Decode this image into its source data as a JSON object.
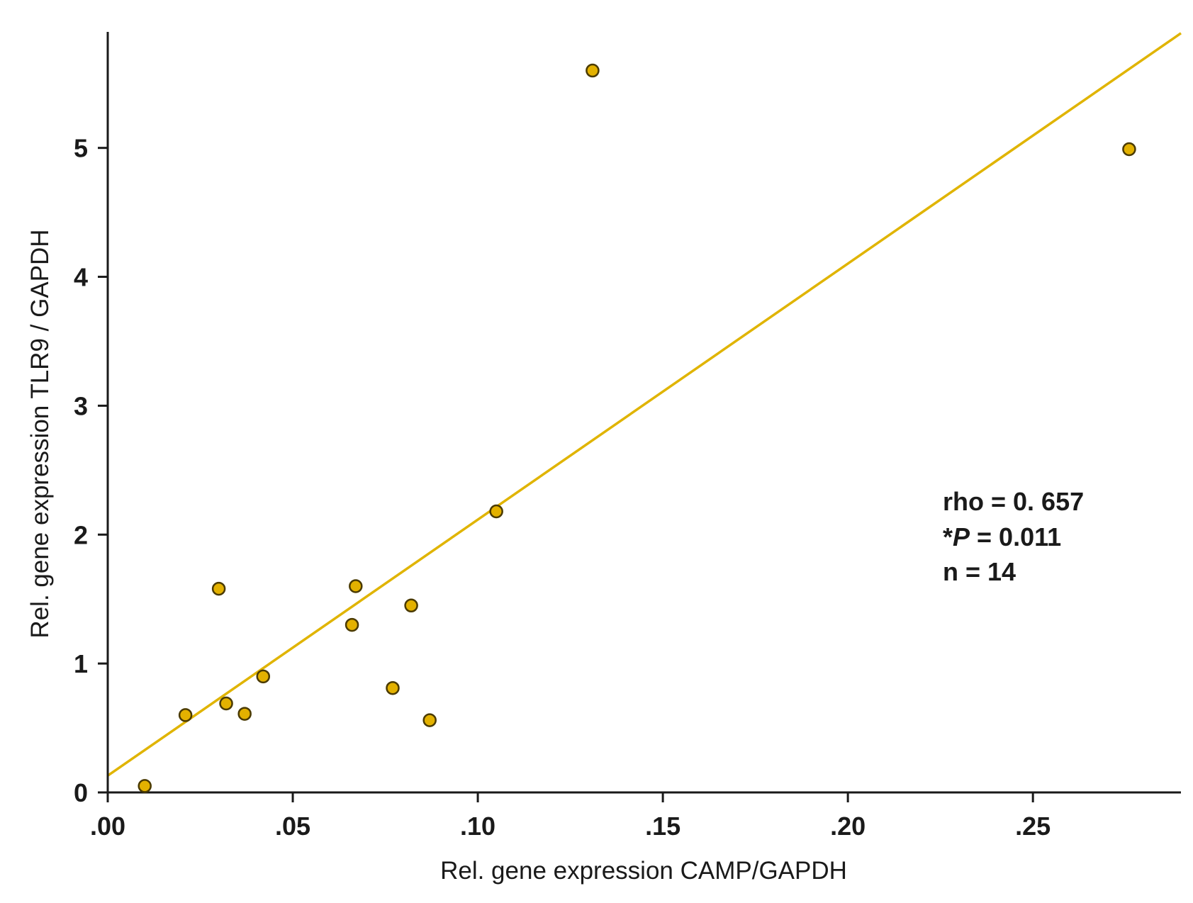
{
  "chart_data": {
    "type": "scatter",
    "xlabel": "Rel. gene expression CAMP/GAPDH",
    "ylabel": "Rel. gene expression TLR9 / GAPDH",
    "xlim": [
      0.0,
      0.29
    ],
    "ylim": [
      0.0,
      5.9
    ],
    "x_ticks": [
      0.0,
      0.05,
      0.1,
      0.15,
      0.2,
      0.25
    ],
    "x_tick_labels": [
      ".00",
      ".05",
      ".10",
      ".15",
      ".20",
      ".25"
    ],
    "y_ticks": [
      0,
      1,
      2,
      3,
      4,
      5
    ],
    "y_tick_labels": [
      "0",
      "1",
      "2",
      "3",
      "4",
      "5"
    ],
    "points": [
      {
        "x": 0.01,
        "y": 0.05
      },
      {
        "x": 0.021,
        "y": 0.6
      },
      {
        "x": 0.03,
        "y": 1.58
      },
      {
        "x": 0.032,
        "y": 0.69
      },
      {
        "x": 0.037,
        "y": 0.61
      },
      {
        "x": 0.042,
        "y": 0.9
      },
      {
        "x": 0.066,
        "y": 1.3
      },
      {
        "x": 0.067,
        "y": 1.6
      },
      {
        "x": 0.077,
        "y": 0.81
      },
      {
        "x": 0.082,
        "y": 1.45
      },
      {
        "x": 0.087,
        "y": 0.56
      },
      {
        "x": 0.105,
        "y": 2.18
      },
      {
        "x": 0.131,
        "y": 5.6
      },
      {
        "x": 0.276,
        "y": 4.99
      }
    ],
    "fit_line": {
      "x": [
        0.0,
        0.29
      ],
      "y": [
        0.13,
        5.89
      ]
    },
    "point_color": "#e3b100",
    "point_stroke": "#4a3a00",
    "line_color": "#e0b400",
    "grid": false,
    "legend": null,
    "annotations": {
      "rho": "rho = 0. 657",
      "p_prefix": "*",
      "p_symbol": "P",
      "p_value": " = 0.011",
      "n": "n = 14"
    }
  }
}
